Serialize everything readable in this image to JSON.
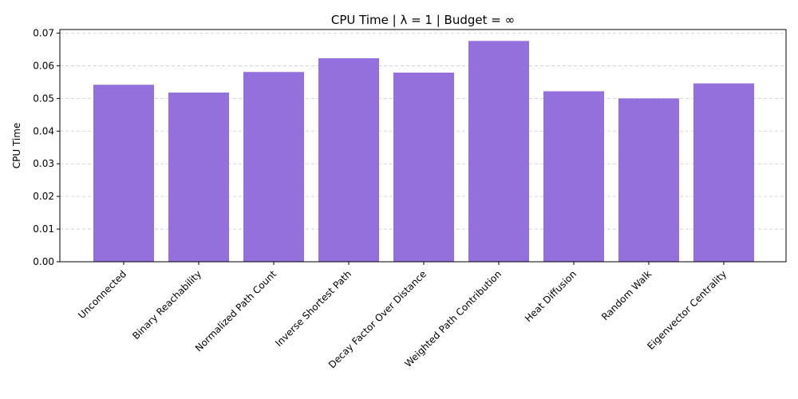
{
  "chart_data": {
    "type": "bar",
    "title": "CPU Time | λ = 1 | Budget = ∞",
    "xlabel": "",
    "ylabel": "CPU Time",
    "categories": [
      "Unconnected",
      "Binary Reachability",
      "Normalized Path Count",
      "Inverse Shortest Path",
      "Decay Factor Over Distance",
      "Weighted Path Contribution",
      "Heat Diffusion",
      "Random Walk",
      "Eigenvector Centrality"
    ],
    "values": [
      0.0542,
      0.0518,
      0.0581,
      0.0623,
      0.0579,
      0.0676,
      0.0522,
      0.05,
      0.0546
    ],
    "ylim": [
      0,
      0.0711
    ],
    "yticks": [
      "0.00",
      "0.01",
      "0.02",
      "0.03",
      "0.04",
      "0.05",
      "0.06",
      "0.07"
    ],
    "ytick_values": [
      0,
      0.01,
      0.02,
      0.03,
      0.04,
      0.05,
      0.06,
      0.07
    ],
    "bar_color": "#9370db",
    "grid": "y-dashed",
    "legend": "none"
  }
}
